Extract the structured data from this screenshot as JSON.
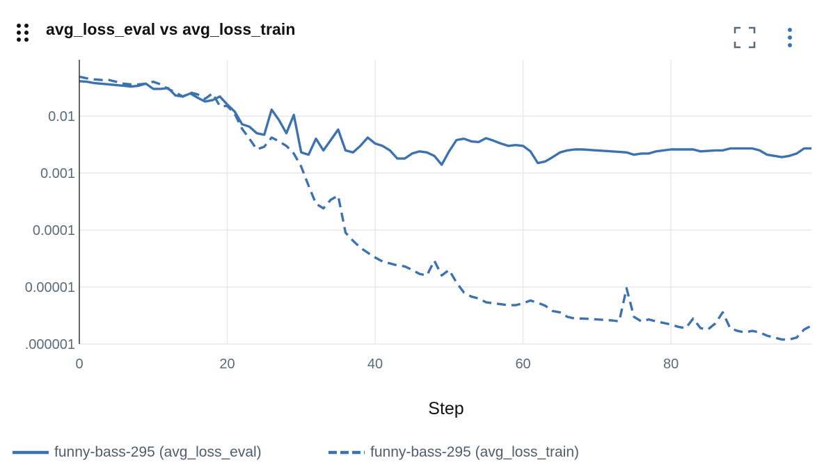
{
  "panel": {
    "title": "avg_loss_eval vs avg_loss_train",
    "drag_icon": "drag-handle-icon",
    "expand_icon": "fullscreen-icon",
    "menu_icon": "kebab-menu-icon"
  },
  "colors": {
    "series": "#3d72b0",
    "grid": "#e7e9ec",
    "tick_text": "#5b6b7b",
    "axis_title": "#111111"
  },
  "chart_data": {
    "type": "line",
    "xlabel": "Step",
    "ylabel": "",
    "title": "",
    "x_scale": "linear",
    "y_scale": "log",
    "xlim": [
      0,
      99
    ],
    "ylim": [
      1e-06,
      0.1
    ],
    "x_ticks": [
      0,
      20,
      40,
      60,
      80
    ],
    "x_tick_labels": [
      "0",
      "20",
      "40",
      "60",
      "80"
    ],
    "y_ticks": [
      1e-06,
      1e-05,
      0.0001,
      0.001,
      0.01
    ],
    "y_tick_labels": [
      ".000001",
      "0.00001",
      "0.0001",
      "0.001",
      "0.01"
    ],
    "grid": true,
    "legend_position": "bottom-left",
    "series": [
      {
        "name": "funny-bass-295 (avg_loss_eval)",
        "style": "solid",
        "points": [
          [
            0,
            0.041
          ],
          [
            1,
            0.04
          ],
          [
            2,
            0.038
          ],
          [
            3,
            0.037
          ],
          [
            4,
            0.036
          ],
          [
            5,
            0.035
          ],
          [
            6,
            0.034
          ],
          [
            7,
            0.033
          ],
          [
            8,
            0.034
          ],
          [
            9,
            0.037
          ],
          [
            10,
            0.03
          ],
          [
            11,
            0.03
          ],
          [
            12,
            0.031
          ],
          [
            13,
            0.023
          ],
          [
            14,
            0.022
          ],
          [
            15,
            0.025
          ],
          [
            16,
            0.021
          ],
          [
            17,
            0.018
          ],
          [
            18,
            0.019
          ],
          [
            19,
            0.022
          ],
          [
            20,
            0.016
          ],
          [
            21,
            0.012
          ],
          [
            22,
            0.0072
          ],
          [
            23,
            0.0065
          ],
          [
            24,
            0.005
          ],
          [
            25,
            0.0047
          ],
          [
            26,
            0.013
          ],
          [
            27,
            0.0085
          ],
          [
            28,
            0.005
          ],
          [
            29,
            0.0105
          ],
          [
            30,
            0.0023
          ],
          [
            31,
            0.0021
          ],
          [
            32,
            0.004
          ],
          [
            33,
            0.0025
          ],
          [
            34,
            0.0038
          ],
          [
            35,
            0.0058
          ],
          [
            36,
            0.0025
          ],
          [
            37,
            0.0023
          ],
          [
            38,
            0.003
          ],
          [
            39,
            0.0042
          ],
          [
            40,
            0.0033
          ],
          [
            41,
            0.003
          ],
          [
            42,
            0.0025
          ],
          [
            43,
            0.0018
          ],
          [
            44,
            0.0018
          ],
          [
            45,
            0.0022
          ],
          [
            46,
            0.0024
          ],
          [
            47,
            0.0023
          ],
          [
            48,
            0.002
          ],
          [
            49,
            0.0014
          ],
          [
            50,
            0.0024
          ],
          [
            51,
            0.0038
          ],
          [
            52,
            0.004
          ],
          [
            53,
            0.0036
          ],
          [
            54,
            0.0035
          ],
          [
            55,
            0.0041
          ],
          [
            56,
            0.0037
          ],
          [
            57,
            0.0033
          ],
          [
            58,
            0.003
          ],
          [
            59,
            0.0031
          ],
          [
            60,
            0.003
          ],
          [
            61,
            0.0024
          ],
          [
            62,
            0.0015
          ],
          [
            63,
            0.0016
          ],
          [
            64,
            0.0019
          ],
          [
            65,
            0.0023
          ],
          [
            66,
            0.0025
          ],
          [
            67,
            0.0026
          ],
          [
            68,
            0.0026
          ],
          [
            70,
            0.0025
          ],
          [
            72,
            0.0024
          ],
          [
            74,
            0.0023
          ],
          [
            75,
            0.0021
          ],
          [
            76,
            0.0022
          ],
          [
            77,
            0.0022
          ],
          [
            78,
            0.0024
          ],
          [
            80,
            0.0026
          ],
          [
            82,
            0.0026
          ],
          [
            83,
            0.0026
          ],
          [
            84,
            0.0024
          ],
          [
            86,
            0.0025
          ],
          [
            87,
            0.0025
          ],
          [
            88,
            0.0027
          ],
          [
            90,
            0.0027
          ],
          [
            91,
            0.0027
          ],
          [
            92,
            0.0025
          ],
          [
            93,
            0.0021
          ],
          [
            94,
            0.002
          ],
          [
            95,
            0.0019
          ],
          [
            96,
            0.002
          ],
          [
            97,
            0.0022
          ],
          [
            98,
            0.0027
          ],
          [
            99,
            0.0027
          ]
        ]
      },
      {
        "name": "funny-bass-295 (avg_loss_train)",
        "style": "dashed",
        "points": [
          [
            0,
            0.049
          ],
          [
            1,
            0.046
          ],
          [
            2,
            0.044
          ],
          [
            3,
            0.043
          ],
          [
            4,
            0.043
          ],
          [
            5,
            0.04
          ],
          [
            6,
            0.037
          ],
          [
            7,
            0.036
          ],
          [
            8,
            0.036
          ],
          [
            9,
            0.037
          ],
          [
            10,
            0.04
          ],
          [
            11,
            0.036
          ],
          [
            12,
            0.03
          ],
          [
            13,
            0.026
          ],
          [
            14,
            0.022
          ],
          [
            15,
            0.026
          ],
          [
            16,
            0.024
          ],
          [
            17,
            0.02
          ],
          [
            18,
            0.025
          ],
          [
            19,
            0.015
          ],
          [
            20,
            0.015
          ],
          [
            21,
            0.011
          ],
          [
            22,
            0.006
          ],
          [
            23,
            0.004
          ],
          [
            24,
            0.0026
          ],
          [
            25,
            0.0029
          ],
          [
            26,
            0.0042
          ],
          [
            27,
            0.0036
          ],
          [
            28,
            0.003
          ],
          [
            29,
            0.0022
          ],
          [
            30,
            0.0013
          ],
          [
            31,
            0.0006
          ],
          [
            32,
            0.00029
          ],
          [
            33,
            0.00024
          ],
          [
            34,
            0.00034
          ],
          [
            35,
            0.0004
          ],
          [
            36,
            9e-05
          ],
          [
            37,
            6.5e-05
          ],
          [
            38,
            4.9e-05
          ],
          [
            39,
            4e-05
          ],
          [
            40,
            3.3e-05
          ],
          [
            41,
            2.8e-05
          ],
          [
            42,
            2.6e-05
          ],
          [
            43,
            2.4e-05
          ],
          [
            44,
            2.3e-05
          ],
          [
            45,
            2e-05
          ],
          [
            46,
            1.7e-05
          ],
          [
            47,
            1.6e-05
          ],
          [
            48,
            2.9e-05
          ],
          [
            49,
            1.6e-05
          ],
          [
            50,
            2e-05
          ],
          [
            51,
            1.2e-05
          ],
          [
            52,
            8e-06
          ],
          [
            53,
            6.8e-06
          ],
          [
            54,
            6.3e-06
          ],
          [
            55,
            5.4e-06
          ],
          [
            56,
            5.2e-06
          ],
          [
            57,
            5e-06
          ],
          [
            58,
            4.8e-06
          ],
          [
            59,
            4.8e-06
          ],
          [
            60,
            5.2e-06
          ],
          [
            61,
            5.8e-06
          ],
          [
            62,
            5.3e-06
          ],
          [
            63,
            4.7e-06
          ],
          [
            64,
            3.8e-06
          ],
          [
            65,
            3.6e-06
          ],
          [
            66,
            3e-06
          ],
          [
            67,
            2.8e-06
          ],
          [
            68,
            2.8e-06
          ],
          [
            70,
            2.7e-06
          ],
          [
            72,
            2.6e-06
          ],
          [
            73,
            2.5e-06
          ],
          [
            74,
            9.5e-06
          ],
          [
            75,
            3e-06
          ],
          [
            76,
            2.5e-06
          ],
          [
            77,
            2.7e-06
          ],
          [
            78,
            2.5e-06
          ],
          [
            80,
            2.2e-06
          ],
          [
            81,
            2e-06
          ],
          [
            82,
            1.9e-06
          ],
          [
            83,
            2.8e-06
          ],
          [
            84,
            1.9e-06
          ],
          [
            85,
            1.8e-06
          ],
          [
            86,
            2.3e-06
          ],
          [
            87,
            3.6e-06
          ],
          [
            88,
            1.9e-06
          ],
          [
            89,
            1.7e-06
          ],
          [
            90,
            1.6e-06
          ],
          [
            91,
            1.7e-06
          ],
          [
            92,
            1.6e-06
          ],
          [
            93,
            1.4e-06
          ],
          [
            94,
            1.3e-06
          ],
          [
            95,
            1.2e-06
          ],
          [
            96,
            1.2e-06
          ],
          [
            97,
            1.3e-06
          ],
          [
            98,
            1.8e-06
          ],
          [
            99,
            2.1e-06
          ]
        ]
      }
    ]
  }
}
